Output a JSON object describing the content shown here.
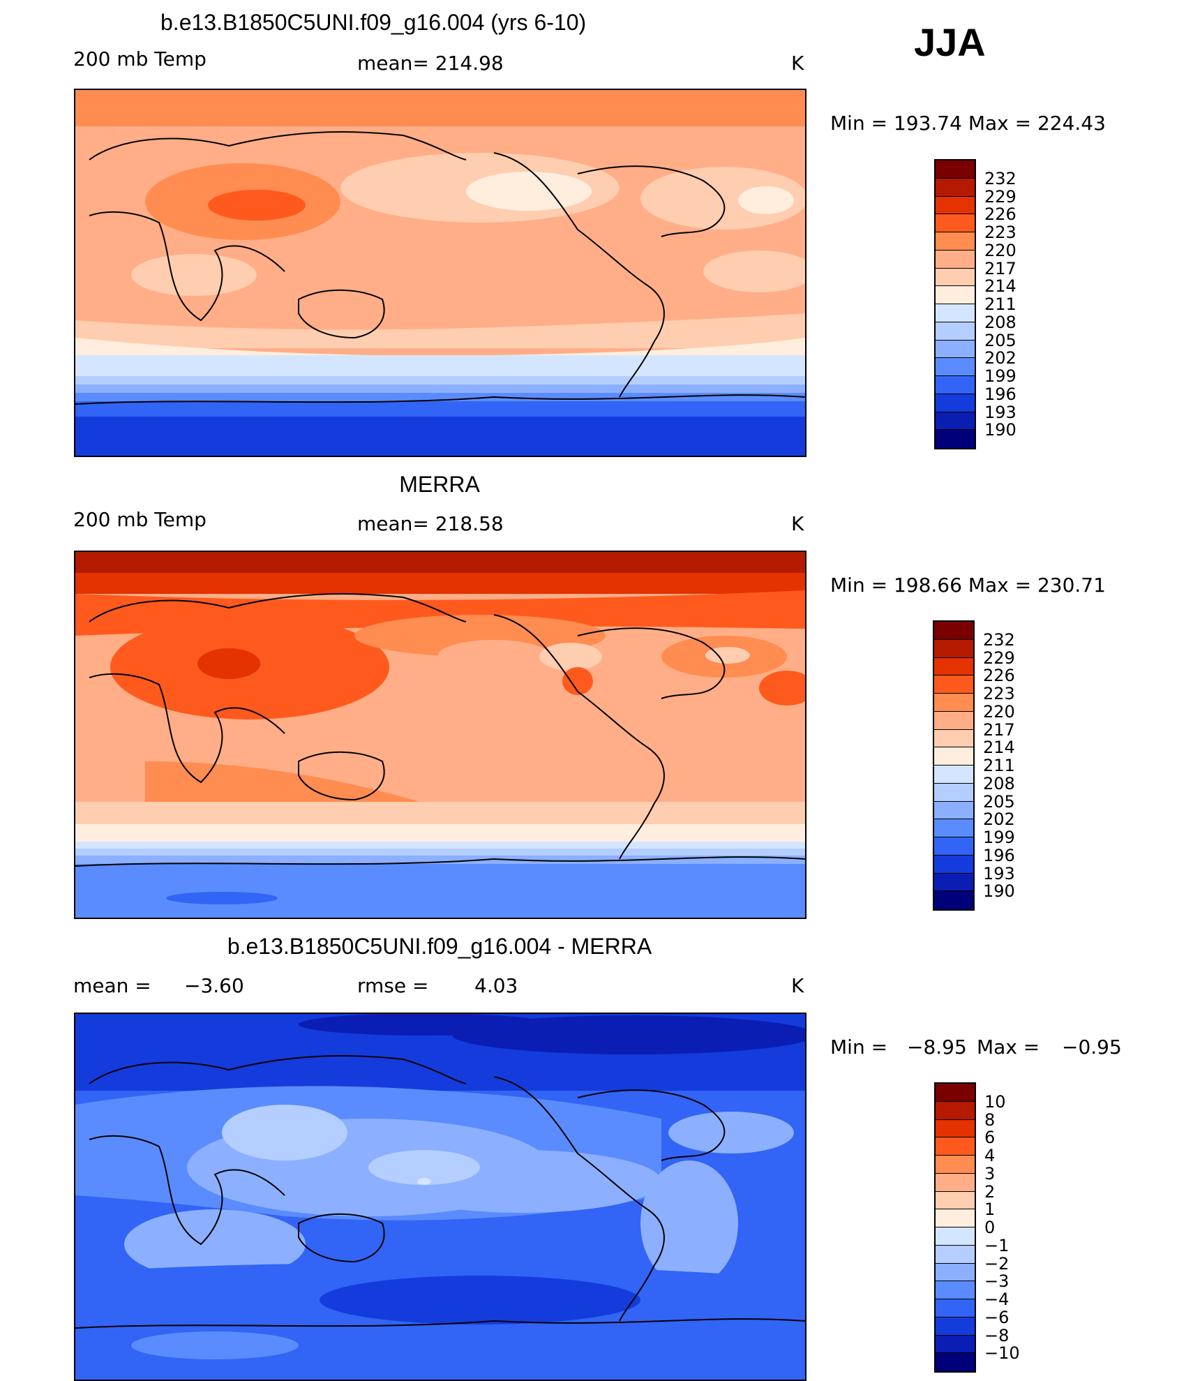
{
  "season": "JJA",
  "panels": [
    {
      "title": "b.e13.B1850C5UNI.f09_g16.004 (yrs 6-10)",
      "left_label": "200 mb Temp",
      "center_label": "mean= 214.98",
      "units": "K",
      "minmax": "Min  =  193.74  Max  =  224.43"
    },
    {
      "title": "MERRA",
      "left_label": "200 mb Temp",
      "center_label": "mean= 218.58",
      "units": "K",
      "minmax": "Min  =  198.66  Max  =  230.71"
    },
    {
      "title": "b.e13.B1850C5UNI.f09_g16.004 - MERRA",
      "left_label": "mean  =",
      "left_value": "−3.60",
      "center_label": "rmse  =",
      "center_value": "4.03",
      "units": "K",
      "minmax_min_label": "Min  =",
      "minmax_min": "−8.95",
      "minmax_max_label": "Max  =",
      "minmax_max": "−0.95"
    }
  ],
  "colorbar_temp": {
    "labels": [
      "232",
      "229",
      "226",
      "223",
      "220",
      "217",
      "214",
      "211",
      "208",
      "205",
      "202",
      "199",
      "196",
      "193",
      "190"
    ],
    "colors": [
      "#7a0000",
      "#b51a00",
      "#e43200",
      "#ff5a1e",
      "#ff8c50",
      "#ffae87",
      "#ffcdb0",
      "#ffeedd",
      "#d4e6ff",
      "#b4ceff",
      "#8cb0ff",
      "#5a8cff",
      "#3264f5",
      "#143cdc",
      "#0a1eb4",
      "#00007a"
    ]
  },
  "colorbar_diff": {
    "labels": [
      "10",
      "8",
      "6",
      "4",
      "3",
      "2",
      "1",
      "0",
      "−1",
      "−2",
      "−3",
      "−4",
      "−6",
      "−8",
      "−10"
    ],
    "colors": [
      "#7a0000",
      "#b51a00",
      "#e43200",
      "#ff5a1e",
      "#ff8c50",
      "#ffae87",
      "#ffcdb0",
      "#ffeedd",
      "#d4e6ff",
      "#b4ceff",
      "#8cb0ff",
      "#5a8cff",
      "#3264f5",
      "#143cdc",
      "#0a1eb4",
      "#00007a"
    ]
  }
}
